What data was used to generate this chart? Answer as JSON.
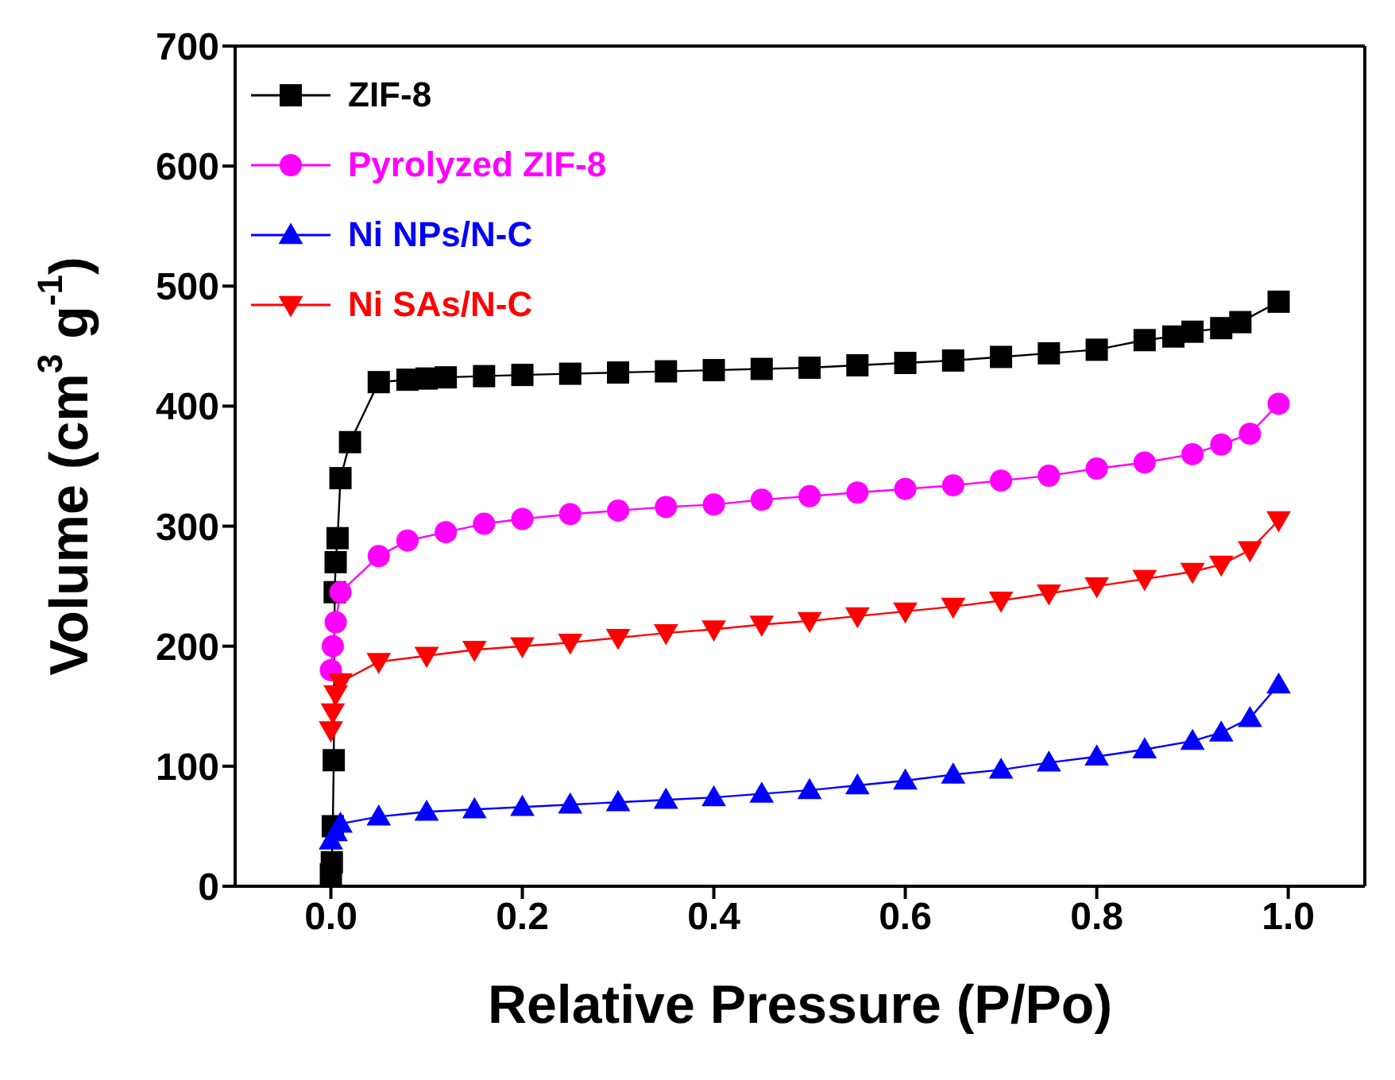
{
  "chart_data": {
    "type": "line",
    "xlabel": "Relative Pressure (P/Po)",
    "ylabel": "Volume (cm$^{3}$ g$^{-1}$)",
    "xlim": [
      -0.1,
      1.08
    ],
    "ylim": [
      0,
      700
    ],
    "xticks": [
      {
        "value": 0,
        "label": "0.0"
      },
      {
        "value": 0.2,
        "label": "0.2"
      },
      {
        "value": 0.4,
        "label": "0.4"
      },
      {
        "value": 0.6,
        "label": "0.6"
      },
      {
        "value": 0.8,
        "label": "0.8"
      },
      {
        "value": 1,
        "label": "1.0"
      }
    ],
    "yticks": [
      0,
      100,
      200,
      300,
      400,
      500,
      600,
      700
    ],
    "legend": "top left",
    "series": [
      {
        "name": "ZIF-8",
        "color": "#000000",
        "marker": "square",
        "x": [
          0,
          0.001,
          0.002,
          0.003,
          0.004,
          0.005,
          0.007,
          0.01,
          0.02,
          0.05,
          0.08,
          0.1,
          0.12,
          0.16,
          0.2,
          0.25,
          0.3,
          0.35,
          0.4,
          0.45,
          0.5,
          0.55,
          0.6,
          0.65,
          0.7,
          0.75,
          0.8,
          0.85,
          0.88,
          0.9,
          0.93,
          0.95,
          0.99
        ],
        "values": [
          10,
          20,
          50,
          105,
          245,
          270,
          290,
          340,
          370,
          420,
          422,
          423,
          424,
          425,
          426,
          427,
          428,
          429,
          430,
          431,
          432,
          434,
          436,
          438,
          441,
          444,
          447,
          455,
          458,
          462,
          465,
          470,
          487
        ]
      },
      {
        "name": "Pyrolyzed ZIF-8",
        "color": "#ff00ff",
        "marker": "circle",
        "x": [
          0,
          0.002,
          0.005,
          0.01,
          0.05,
          0.08,
          0.12,
          0.16,
          0.2,
          0.25,
          0.3,
          0.35,
          0.4,
          0.45,
          0.5,
          0.55,
          0.6,
          0.65,
          0.7,
          0.75,
          0.8,
          0.85,
          0.9,
          0.93,
          0.96,
          0.99
        ],
        "values": [
          180,
          200,
          220,
          245,
          275,
          288,
          295,
          302,
          306,
          310,
          313,
          316,
          318,
          322,
          325,
          328,
          331,
          334,
          338,
          342,
          348,
          353,
          360,
          368,
          377,
          402
        ]
      },
      {
        "name": "Ni NPs/N-C",
        "color": "#0000ff",
        "marker": "triangle",
        "x": [
          0,
          0.005,
          0.01,
          0.05,
          0.1,
          0.15,
          0.2,
          0.25,
          0.3,
          0.35,
          0.4,
          0.45,
          0.5,
          0.55,
          0.6,
          0.65,
          0.7,
          0.75,
          0.8,
          0.85,
          0.9,
          0.93,
          0.96,
          0.99
        ],
        "values": [
          38,
          45,
          52,
          58,
          62,
          64,
          66,
          68,
          70,
          72,
          74,
          77,
          80,
          84,
          88,
          93,
          97,
          103,
          108,
          114,
          121,
          128,
          140,
          168
        ]
      },
      {
        "name": "Ni SAs/N-C",
        "color": "#ff0000",
        "marker": "triangle-down",
        "x": [
          0,
          0.002,
          0.005,
          0.01,
          0.05,
          0.1,
          0.15,
          0.2,
          0.25,
          0.3,
          0.35,
          0.4,
          0.45,
          0.5,
          0.55,
          0.6,
          0.65,
          0.7,
          0.75,
          0.8,
          0.85,
          0.9,
          0.93,
          0.96,
          0.99
        ],
        "values": [
          130,
          145,
          160,
          170,
          187,
          192,
          197,
          200,
          203,
          207,
          211,
          214,
          218,
          221,
          225,
          229,
          233,
          238,
          244,
          250,
          256,
          262,
          268,
          280,
          305
        ]
      }
    ]
  }
}
